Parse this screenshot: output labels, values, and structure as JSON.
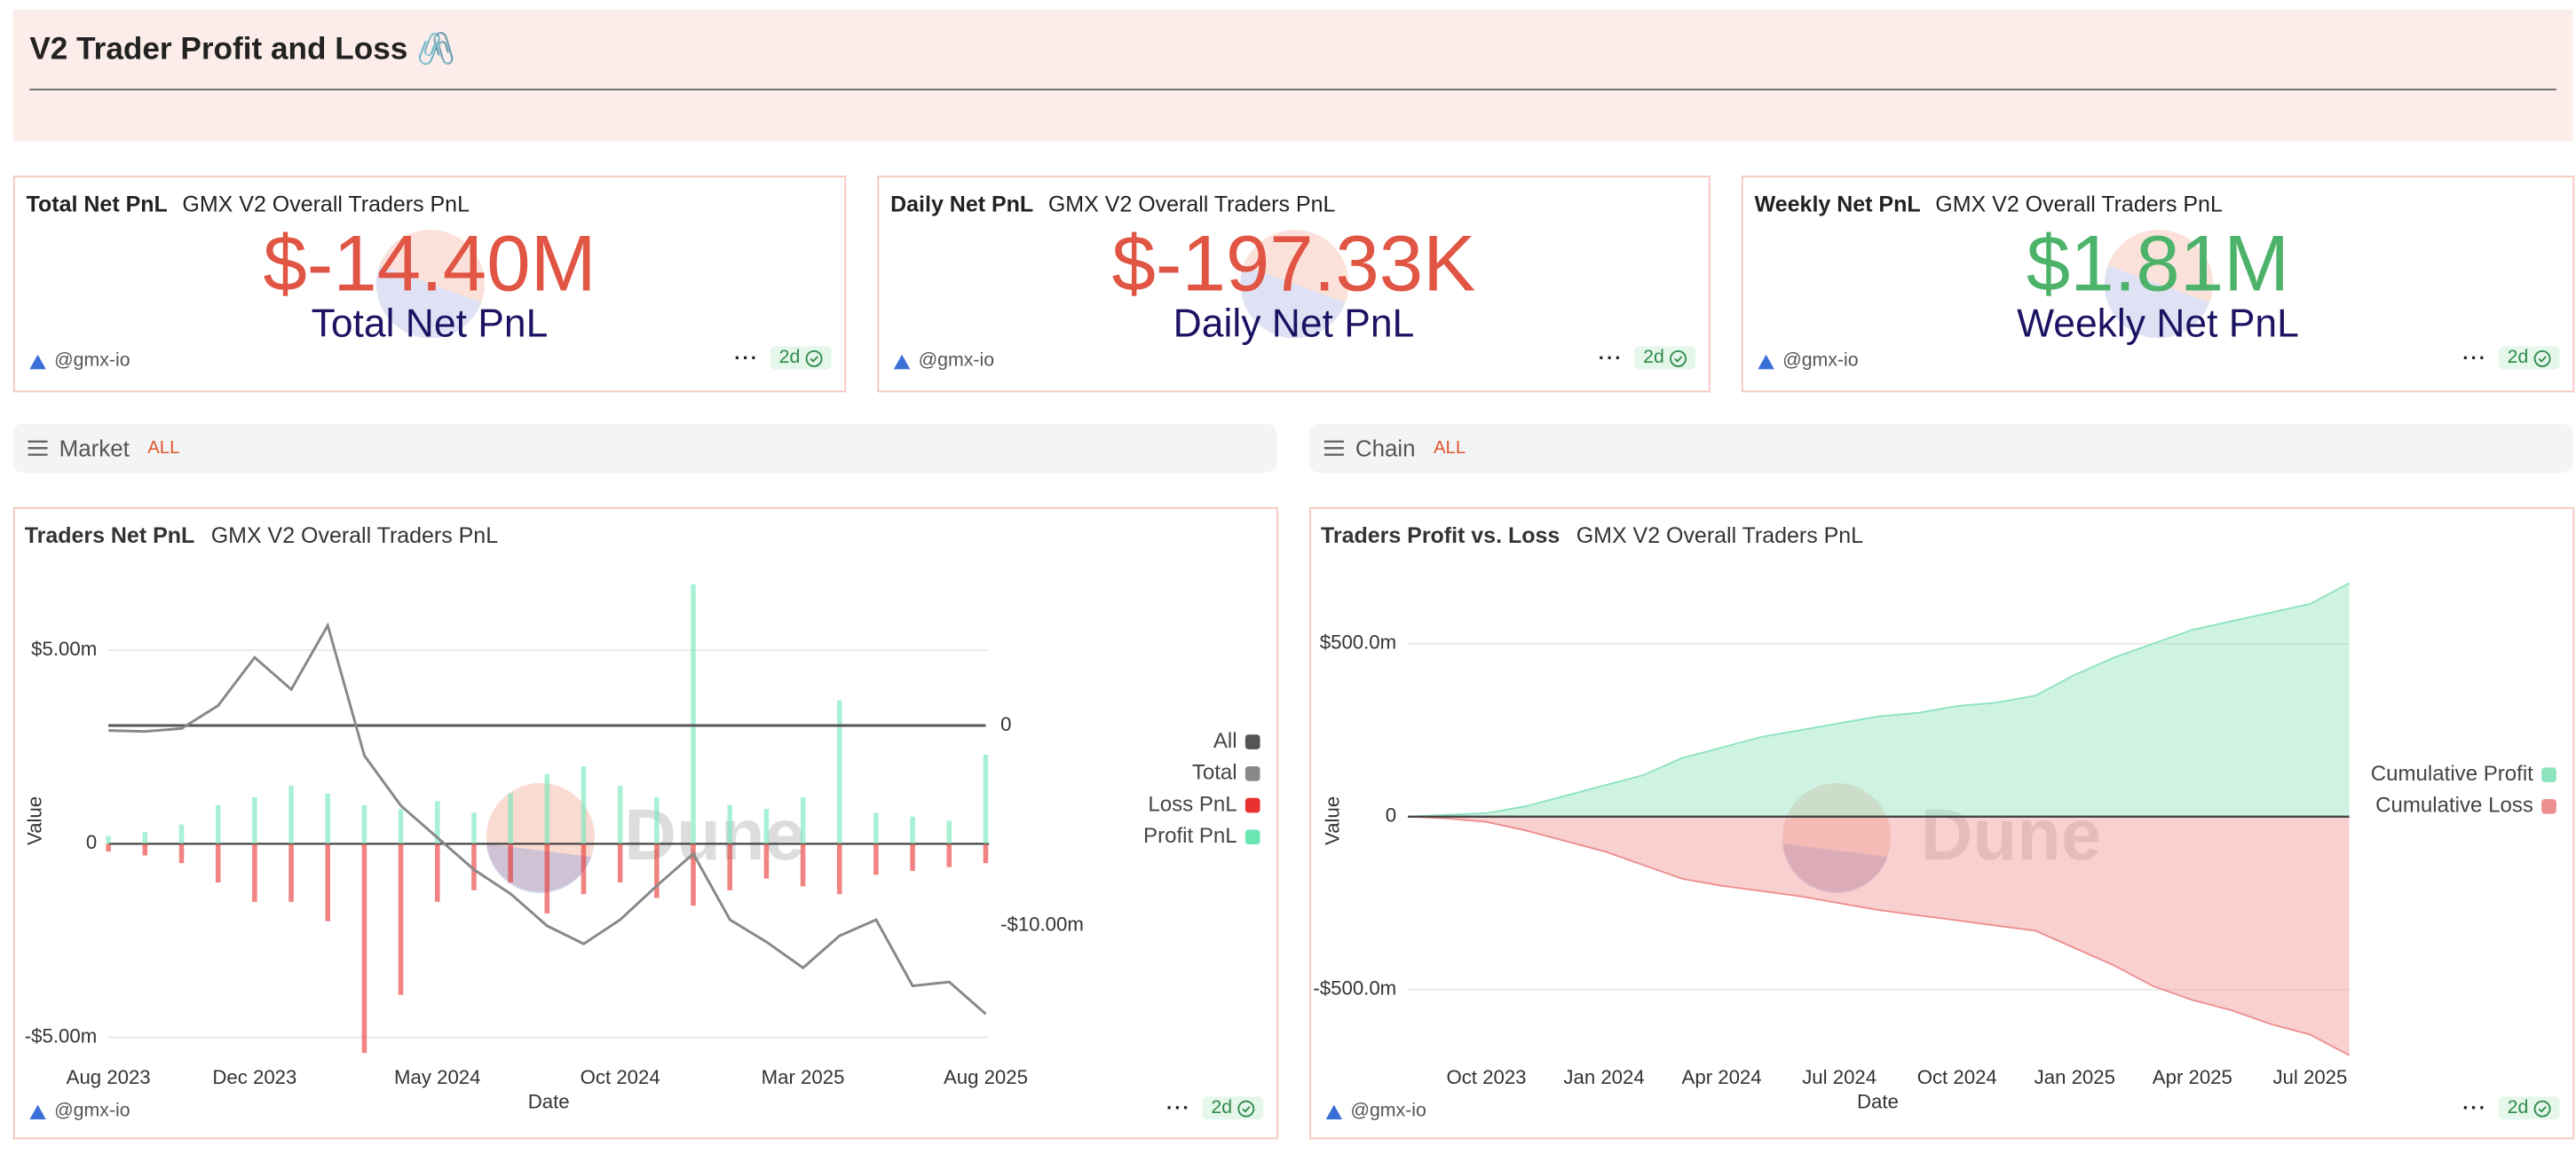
{
  "header": {
    "title": "V2 Trader Profit and Loss 🖇️"
  },
  "counters": [
    {
      "title": "Total Net PnL",
      "query": "GMX V2 Overall Traders PnL",
      "value": "$-14.40M",
      "label": "Total Net PnL",
      "color": "#e05543",
      "author": "@gmx-io",
      "age": "2d"
    },
    {
      "title": "Daily Net PnL",
      "query": "GMX V2 Overall Traders PnL",
      "value": "$-197.33K",
      "label": "Daily Net PnL",
      "color": "#e05543",
      "author": "@gmx-io",
      "age": "2d"
    },
    {
      "title": "Weekly Net PnL",
      "query": "GMX V2 Overall Traders PnL",
      "value": "$1.81M",
      "label": "Weekly Net PnL",
      "color": "#4db36b",
      "author": "@gmx-io",
      "age": "2d"
    }
  ],
  "filters": [
    {
      "name": "Market",
      "value": "ALL"
    },
    {
      "name": "Chain",
      "value": "ALL"
    }
  ],
  "chart_data": [
    {
      "type": "bar",
      "title": "Traders Net PnL",
      "subtitle": "GMX V2 Overall Traders PnL",
      "xlabel": "Date",
      "ylabel": "Value",
      "watermark": "Dune",
      "author": "@gmx-io",
      "age": "2d",
      "grid": true,
      "legend": "right",
      "x": [
        "2023-08",
        "2023-09",
        "2023-10",
        "2023-11",
        "2023-12",
        "2024-01",
        "2024-02",
        "2024-03",
        "2024-04",
        "2024-05",
        "2024-06",
        "2024-07",
        "2024-08",
        "2024-09",
        "2024-10",
        "2024-11",
        "2024-12",
        "2025-01",
        "2025-02",
        "2025-03",
        "2025-04",
        "2025-05",
        "2025-06",
        "2025-07",
        "2025-08"
      ],
      "xlim": [
        "2023-08",
        "2025-08"
      ],
      "xticks": [
        {
          "value": "2023-08",
          "label": "Aug 2023"
        },
        {
          "value": "2023-12",
          "label": "Dec 2023"
        },
        {
          "value": "2024-05",
          "label": "May 2024"
        },
        {
          "value": "2024-10",
          "label": "Oct 2024"
        },
        {
          "value": "2025-03",
          "label": "Mar 2025"
        },
        {
          "value": "2025-08",
          "label": "Aug 2025"
        }
      ],
      "ylim": [
        -5550000,
        6740000
      ],
      "yticks": [
        {
          "value": 5000000,
          "label": "$5.00m"
        },
        0,
        {
          "value": -5000000,
          "label": "-$5.00m"
        }
      ],
      "y2lim": [
        -16640000,
        7130000
      ],
      "y2ticks": [
        0,
        {
          "value": -10000000,
          "label": "-$10.00m"
        }
      ],
      "series": [
        {
          "name": "All",
          "type": "line",
          "axis": "y2",
          "color": "#555555",
          "values": [
            0,
            0,
            0,
            0,
            0,
            0,
            0,
            0,
            0,
            0,
            0,
            0,
            0,
            0,
            0,
            0,
            0,
            0,
            0,
            0,
            0,
            0,
            0,
            0,
            0
          ]
        },
        {
          "name": "Total",
          "type": "line",
          "axis": "y2",
          "color": "#888888",
          "values": [
            -250000,
            -300000,
            -150000,
            1000000,
            3400000,
            1800000,
            5000000,
            -1500000,
            -4000000,
            -5600000,
            -7200000,
            -8400000,
            -10000000,
            -10900000,
            -9700000,
            -8000000,
            -6400000,
            -9700000,
            -10800000,
            -12100000,
            -10500000,
            -9700000,
            -13000000,
            -12800000,
            -14400000
          ]
        },
        {
          "name": "Loss PnL",
          "type": "bar",
          "color": "#e8312f",
          "values": [
            -200000,
            -300000,
            -500000,
            -1000000,
            -1500000,
            -1500000,
            -2000000,
            -5400000,
            -3900000,
            -1500000,
            -1200000,
            -1000000,
            -1800000,
            -1300000,
            -1000000,
            -1400000,
            -1600000,
            -1200000,
            -900000,
            -1100000,
            -1300000,
            -800000,
            -700000,
            -600000,
            -500000
          ]
        },
        {
          "name": "Profit PnL",
          "type": "bar",
          "color": "#6ee7b7",
          "values": [
            200000,
            300000,
            500000,
            1000000,
            1200000,
            1500000,
            1300000,
            1000000,
            900000,
            1100000,
            800000,
            1300000,
            1800000,
            2000000,
            1500000,
            1200000,
            6700000,
            1000000,
            900000,
            1200000,
            3700000,
            800000,
            700000,
            600000,
            2300000
          ]
        }
      ]
    },
    {
      "type": "area",
      "title": "Traders Profit vs. Loss",
      "subtitle": "GMX V2 Overall Traders PnL",
      "xlabel": "Date",
      "ylabel": "Value",
      "watermark": "Dune",
      "author": "@gmx-io",
      "age": "2d",
      "grid": true,
      "legend": "right",
      "x": [
        "2023-08",
        "2023-09",
        "2023-10",
        "2023-11",
        "2023-12",
        "2024-01",
        "2024-02",
        "2024-03",
        "2024-04",
        "2024-05",
        "2024-06",
        "2024-07",
        "2024-08",
        "2024-09",
        "2024-10",
        "2024-11",
        "2024-12",
        "2025-01",
        "2025-02",
        "2025-03",
        "2025-04",
        "2025-05",
        "2025-06",
        "2025-07",
        "2025-08"
      ],
      "xlim": [
        "2023-08",
        "2025-08"
      ],
      "xticks": [
        {
          "value": "2023-10",
          "label": "Oct 2023"
        },
        {
          "value": "2024-01",
          "label": "Jan 2024"
        },
        {
          "value": "2024-04",
          "label": "Apr 2024"
        },
        {
          "value": "2024-07",
          "label": "Jul 2024"
        },
        {
          "value": "2024-10",
          "label": "Oct 2024"
        },
        {
          "value": "2025-01",
          "label": "Jan 2025"
        },
        {
          "value": "2025-04",
          "label": "Apr 2025"
        },
        {
          "value": "2025-07",
          "label": "Jul 2025"
        }
      ],
      "ylim": [
        -700000000,
        700000000
      ],
      "yticks": [
        {
          "value": 500000000,
          "label": "$500.0m"
        },
        0,
        {
          "value": -500000000,
          "label": "-$500.0m"
        }
      ],
      "series": [
        {
          "name": "Cumulative Profit",
          "color": "#8de3bd",
          "values": [
            0,
            5000000,
            10000000,
            30000000,
            60000000,
            90000000,
            120000000,
            170000000,
            200000000,
            230000000,
            250000000,
            270000000,
            290000000,
            300000000,
            320000000,
            330000000,
            350000000,
            410000000,
            460000000,
            500000000,
            540000000,
            565000000,
            590000000,
            615000000,
            675000000
          ]
        },
        {
          "name": "Cumulative Loss",
          "color": "#ee8e8e",
          "values": [
            0,
            -5000000,
            -15000000,
            -40000000,
            -70000000,
            -100000000,
            -140000000,
            -180000000,
            -200000000,
            -215000000,
            -230000000,
            -250000000,
            -270000000,
            -285000000,
            -300000000,
            -315000000,
            -330000000,
            -380000000,
            -430000000,
            -490000000,
            -530000000,
            -560000000,
            -600000000,
            -630000000,
            -690000000
          ]
        }
      ]
    }
  ]
}
